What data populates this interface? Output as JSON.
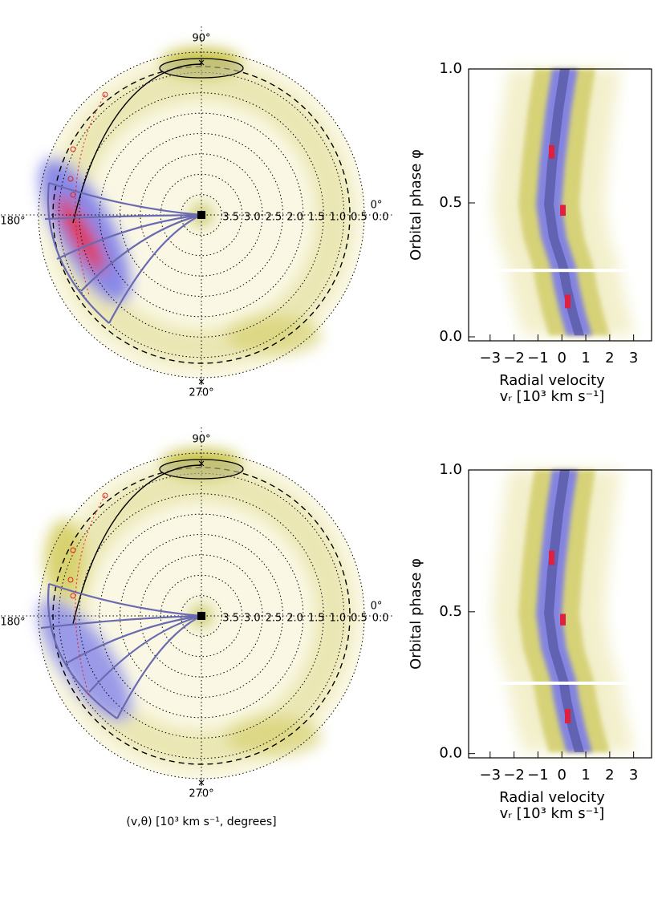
{
  "chart_data": [
    {
      "type": "polar",
      "angle_labels": [
        "90°",
        "180°",
        "0°",
        "270°"
      ],
      "rlim": [
        4.0,
        0.0
      ],
      "rticks": [
        {
          "value": 3.5,
          "label": "3.5"
        },
        {
          "value": 3.0,
          "label": "3.0"
        },
        {
          "value": 2.5,
          "label": "2.5"
        },
        {
          "value": 2.0,
          "label": "2.0"
        },
        {
          "value": 1.5,
          "label": "1.5"
        },
        {
          "value": 1.0,
          "label": "1.0"
        },
        {
          "value": 0.5,
          "label": "0.5"
        },
        {
          "value": 0.0,
          "label": "0.0"
        }
      ]
    },
    {
      "type": "trailed",
      "ylabel": "Orbital phase φ",
      "xlabel": [
        "Radial velocity",
        "vᵣ [10³ km s⁻¹]"
      ],
      "xlim": [
        -3.9,
        3.75
      ],
      "ylim": [
        -0.015,
        1.0
      ],
      "xticks": [
        {
          "value": -3,
          "label": "−3"
        },
        {
          "value": -2,
          "label": "−2"
        },
        {
          "value": -1,
          "label": "−1"
        },
        0,
        1,
        2,
        3
      ],
      "yticks": [
        {
          "value": 0,
          "label": "0.0"
        },
        {
          "value": 0.5,
          "label": "0.5"
        },
        {
          "value": 1,
          "label": "1.0"
        }
      ]
    },
    {
      "type": "polar",
      "angle_labels": [
        "90°",
        "180°",
        "0°",
        "270°"
      ],
      "rlim": [
        4.0,
        0.0
      ],
      "rticks": [
        {
          "value": 3.5,
          "label": "3.5"
        },
        {
          "value": 3.0,
          "label": "3.0"
        },
        {
          "value": 2.5,
          "label": "2.5"
        },
        {
          "value": 2.0,
          "label": "2.0"
        },
        {
          "value": 1.5,
          "label": "1.5"
        },
        {
          "value": 1.0,
          "label": "1.0"
        },
        {
          "value": 0.5,
          "label": "0.5"
        },
        {
          "value": 0.0,
          "label": "0.0"
        }
      ],
      "xlabel": "(v,θ) [10³ km s⁻¹, degrees]"
    },
    {
      "type": "trailed",
      "ylabel": "Orbital phase φ",
      "xlabel": [
        "Radial velocity",
        "vᵣ [10³ km s⁻¹]"
      ],
      "xlim": [
        -3.9,
        3.75
      ],
      "ylim": [
        -0.015,
        1.0
      ],
      "xticks": [
        {
          "value": -3,
          "label": "−3"
        },
        {
          "value": -2,
          "label": "−2"
        },
        {
          "value": -1,
          "label": "−1"
        },
        0,
        1,
        2,
        3
      ],
      "yticks": [
        {
          "value": 0,
          "label": "0.0"
        },
        {
          "value": 0.5,
          "label": "0.5"
        },
        {
          "value": 1,
          "label": "1.0"
        }
      ]
    }
  ]
}
